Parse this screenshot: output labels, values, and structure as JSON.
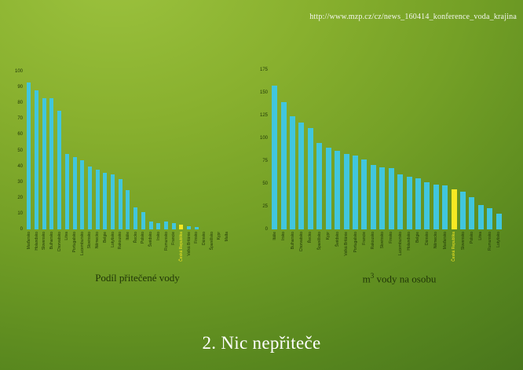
{
  "url_text": "http://www.mzp.cz/cz/news_160414_konference_voda_krajina",
  "heading": "2. Nic nepřiteče",
  "colors": {
    "bar": "#41c6de",
    "highlight": "#f7e823",
    "label": "#223a08",
    "background_top": "#9cc23e",
    "background_bottom": "#47741c",
    "text_light": "#ffffff"
  },
  "chart_data": [
    {
      "type": "bar",
      "title": "Podíl přitečené vody",
      "xlabel": "",
      "ylabel": "",
      "ylim": [
        0,
        100
      ],
      "ytick_step": 10,
      "grid": false,
      "legend": "none",
      "highlight_category": "Česká Republika",
      "categories": [
        "Maďarsko",
        "Holandsko",
        "Slovensko",
        "Bulharsko",
        "Chorvatsko",
        "Litva",
        "Portugalsko",
        "Lucembursko",
        "Slovinsko",
        "Německo",
        "Belgie",
        "Lotyšsko",
        "Rakousko",
        "Itálie",
        "Řecko",
        "Polsko",
        "Švédsko",
        "Irsko",
        "Rumunsko",
        "Francie",
        "Česká Republika",
        "Velká Británie",
        "Finsko",
        "Dánsko",
        "Španělsko",
        "Kypr",
        "Malta"
      ],
      "values": [
        93,
        88,
        83,
        83,
        75,
        48,
        46,
        44,
        40,
        38,
        36,
        35,
        32,
        25,
        14,
        11,
        5,
        4,
        5,
        4,
        3,
        2,
        1.5,
        0,
        0,
        0,
        0
      ]
    },
    {
      "type": "bar",
      "title_base": "m",
      "title_sup": "3",
      "title_rest": " vody na osobu",
      "xlabel": "",
      "ylabel": "",
      "ylim": [
        0,
        175
      ],
      "ytick_step": 25,
      "grid": false,
      "legend": "none",
      "highlight_category": "Česká Republika",
      "categories": [
        "Itálie",
        "Irsko",
        "Bulharsko",
        "Chorvatsko",
        "Řecko",
        "Španělsko",
        "Kypr",
        "Švédsko",
        "Velká Británie",
        "Portugalsko",
        "Francie",
        "Rakousko",
        "Slovinsko",
        "Finsko",
        "Lucembursko",
        "Holandsko",
        "Belgie",
        "Dánsko",
        "Německo",
        "Maďarsko",
        "Česká Republika",
        "Slovensko",
        "Polsko",
        "Litva",
        "Rumunsko",
        "Lotyšsko"
      ],
      "values": [
        158,
        140,
        124,
        117,
        111,
        95,
        90,
        86,
        83,
        81,
        77,
        71,
        68,
        67,
        60,
        58,
        56,
        52,
        49,
        48,
        44,
        41,
        35,
        27,
        23,
        17
      ]
    }
  ]
}
